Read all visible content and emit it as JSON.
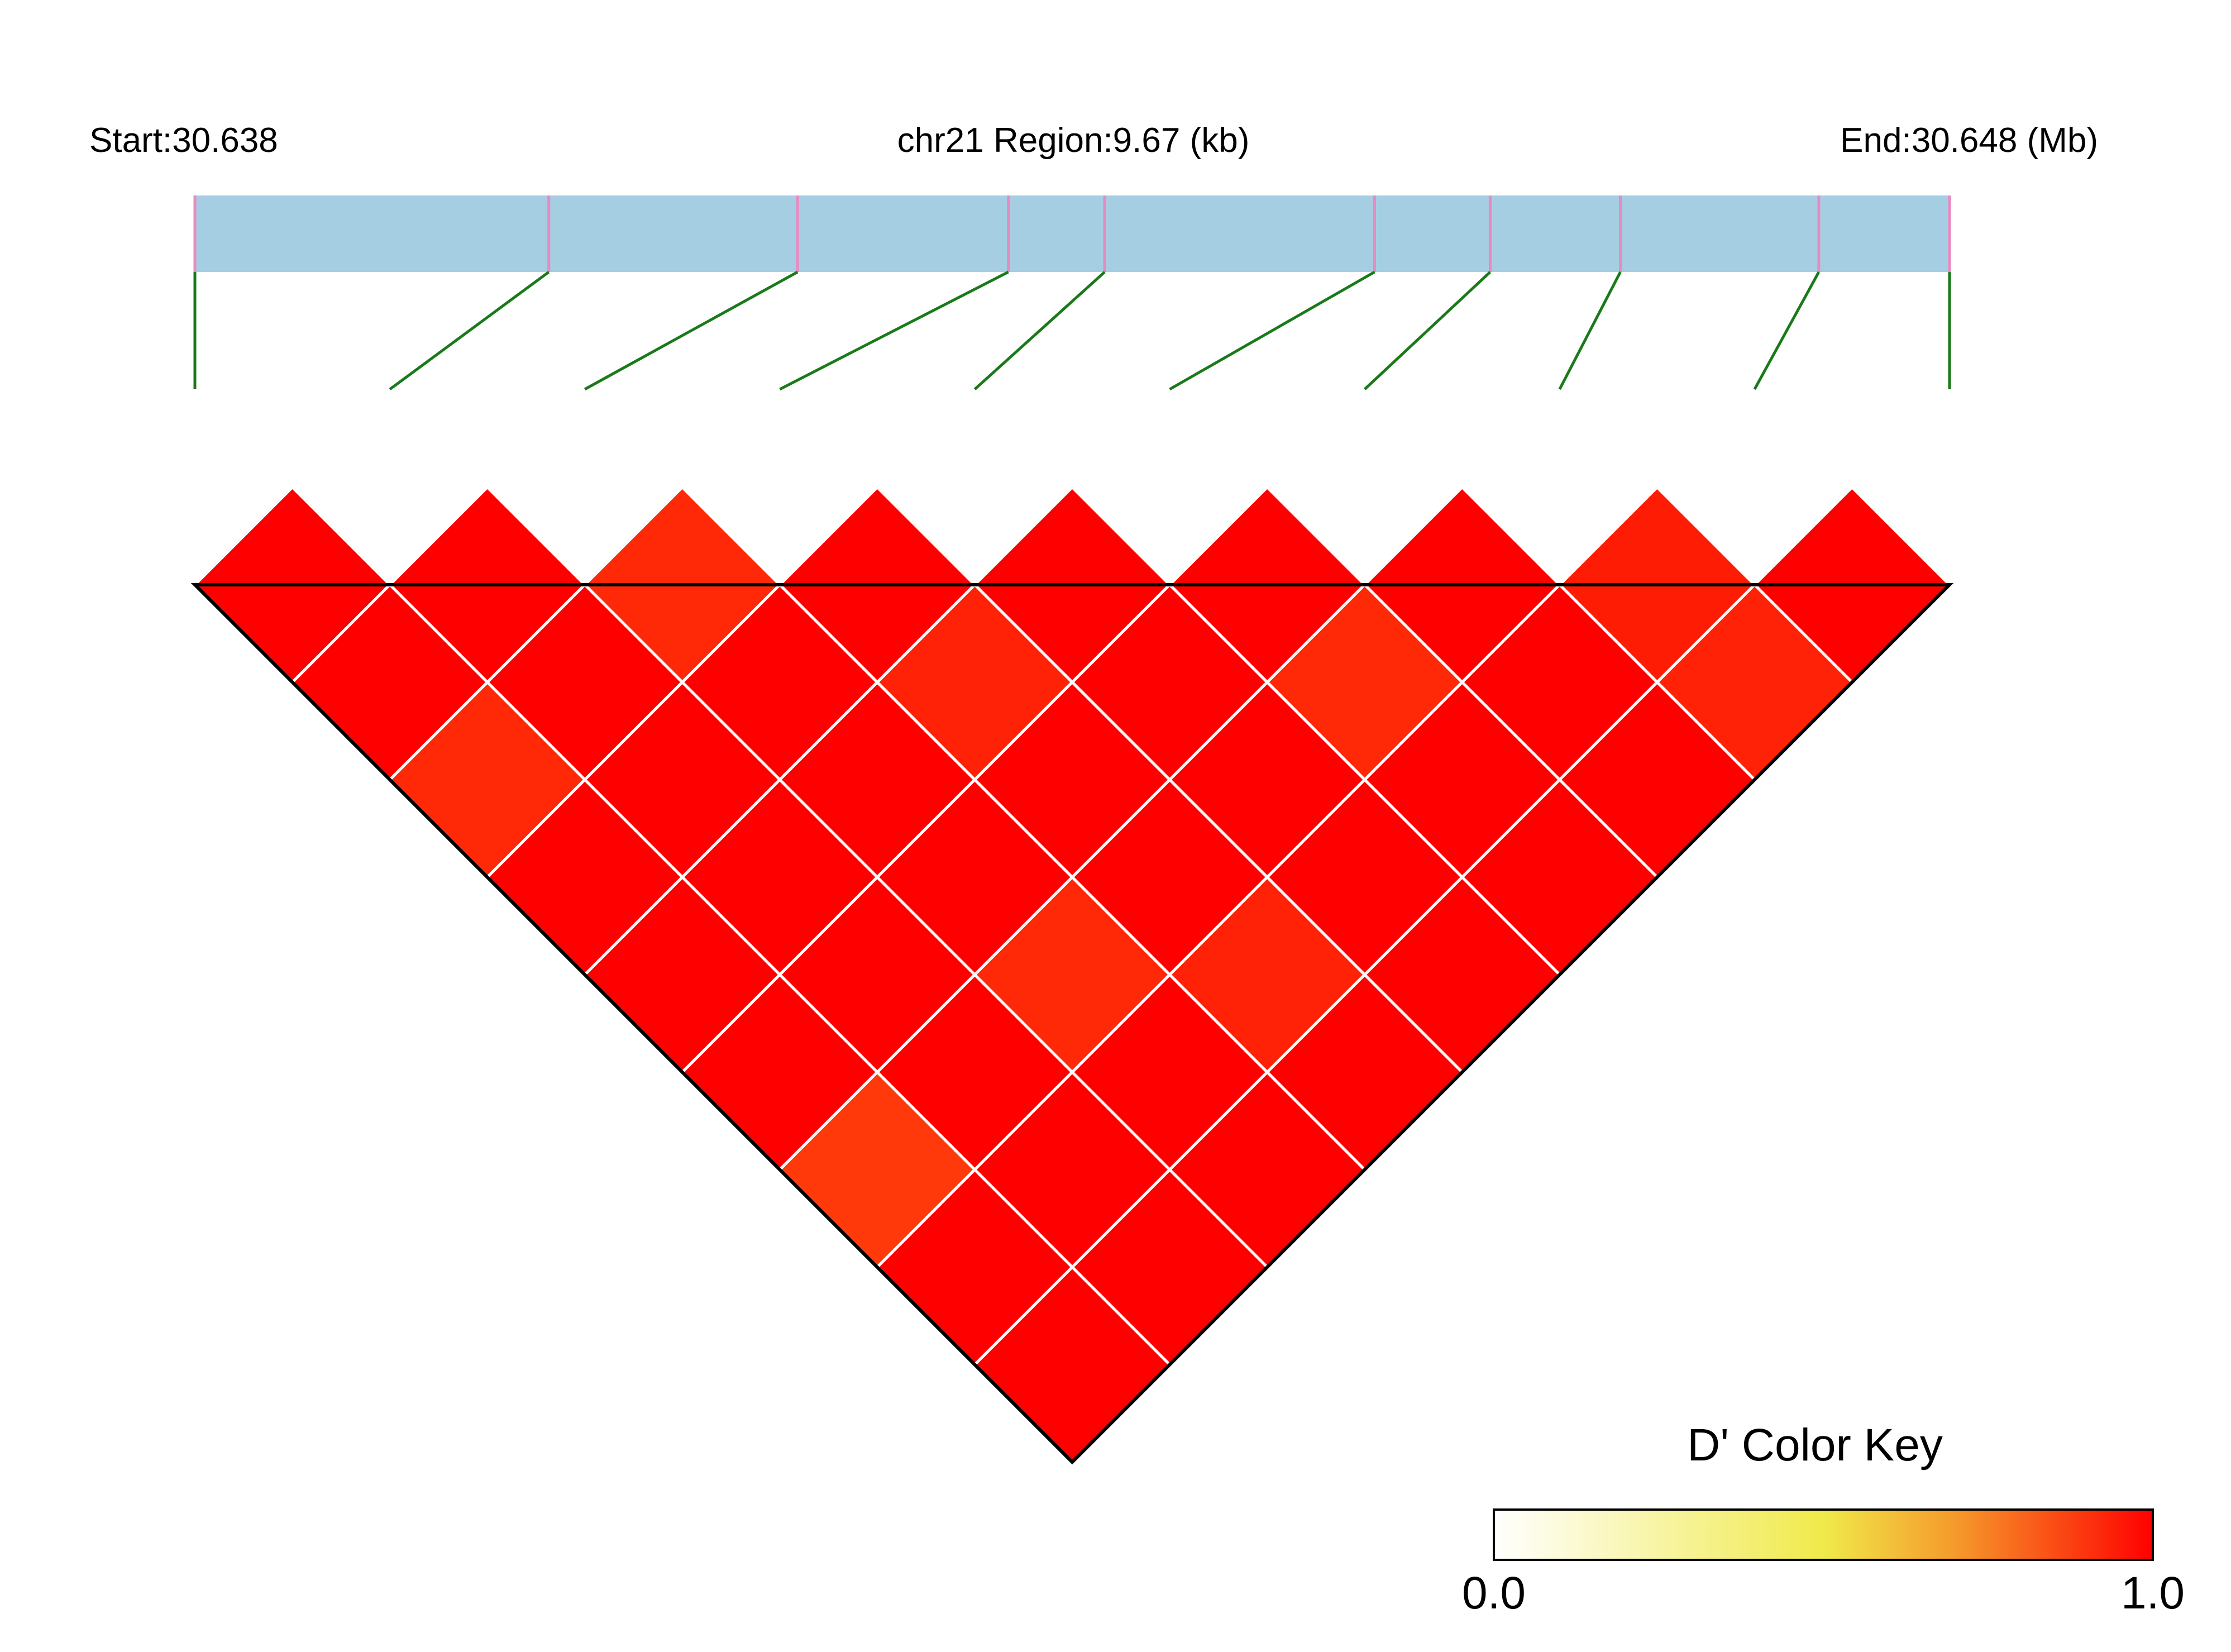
{
  "header": {
    "start_label": "Start:30.638",
    "region_label": "chr21 Region:9.67 (kb)",
    "end_label": "End:30.648 (Mb)"
  },
  "colors": {
    "region_bar": "#a6cee3",
    "snp_tick": "#e889c0",
    "connector": "#1a7a1a",
    "cell_border": "#ffffff",
    "outline": "#000000"
  },
  "chart_data": {
    "type": "heatmap",
    "chromosome": "chr21",
    "start_mb": 30.638,
    "end_mb": 30.648,
    "region_kb": 9.67,
    "snp_relative_positions": [
      0.0,
      0.2017,
      0.3435,
      0.4636,
      0.5185,
      0.6723,
      0.7382,
      0.8124,
      0.9255,
      1.0
    ],
    "extra_row_values": [
      1.0,
      1.0,
      0.93,
      1.0,
      1.0,
      1.0,
      1.0,
      0.95,
      1.0
    ],
    "ld_matrix_rows": [
      [
        1.0,
        1.0,
        0.93,
        1.0,
        1.0,
        1.0,
        1.0,
        0.95,
        1.0
      ],
      [
        1.0,
        1.0,
        1.0,
        0.94,
        1.0,
        0.93,
        1.0,
        0.94
      ],
      [
        0.93,
        1.0,
        1.0,
        1.0,
        1.0,
        1.0,
        1.0
      ],
      [
        1.0,
        1.0,
        1.0,
        1.0,
        1.0,
        1.0
      ],
      [
        1.0,
        1.0,
        0.93,
        0.94,
        1.0
      ],
      [
        1.0,
        1.0,
        1.0,
        1.0
      ],
      [
        0.9,
        1.0,
        1.0
      ],
      [
        1.0,
        1.0
      ],
      [
        1.0
      ]
    ],
    "color_key": {
      "title": "D' Color Key",
      "min_label": "0.0",
      "max_label": "1.0",
      "min": 0.0,
      "max": 1.0,
      "stops": [
        "#ffffff",
        "#f0ea4a",
        "#ff0000"
      ]
    }
  }
}
